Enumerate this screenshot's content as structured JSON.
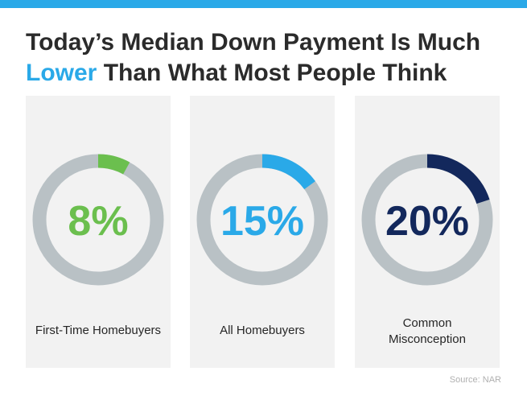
{
  "header": {
    "title_line1": "Today’s Median Down Payment Is Much",
    "title_highlight": "Lower",
    "title_rest": " Than What Most People Think",
    "accent_color": "#2aa9e8"
  },
  "chart_data": {
    "type": "pie",
    "variant": "donut",
    "track_color": "#b9c1c5",
    "items": [
      {
        "label_lines": [
          "First-Time Homebuyers"
        ],
        "value": 8,
        "display": "8%",
        "color": "#6bbf4e"
      },
      {
        "label_lines": [
          "All Homebuyers"
        ],
        "value": 15,
        "display": "15%",
        "color": "#2aa9e8"
      },
      {
        "label_lines": [
          "Common",
          "Misconception"
        ],
        "value": 20,
        "display": "20%",
        "color": "#13285c"
      }
    ]
  },
  "footer": {
    "source": "Source: NAR"
  }
}
